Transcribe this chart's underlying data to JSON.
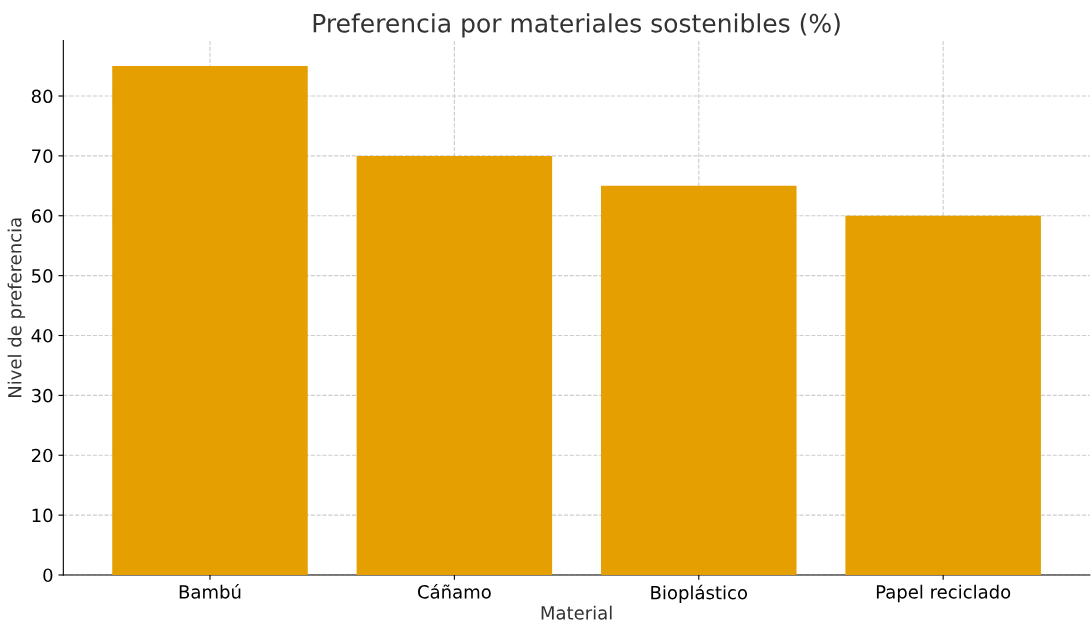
{
  "chart_data": {
    "type": "bar",
    "title": "Preferencia por materiales sostenibles (%)",
    "xlabel": "Material",
    "ylabel": "Nivel de preferencia",
    "categories": [
      "Bambú",
      "Cáñamo",
      "Bioplástico",
      "Papel reciclado"
    ],
    "values": [
      85,
      70,
      65,
      60
    ],
    "color": "#e69f00",
    "ylim": [
      0,
      89.25
    ],
    "yticks": [
      0,
      10,
      20,
      30,
      40,
      50,
      60,
      70,
      80
    ],
    "grid": true
  }
}
